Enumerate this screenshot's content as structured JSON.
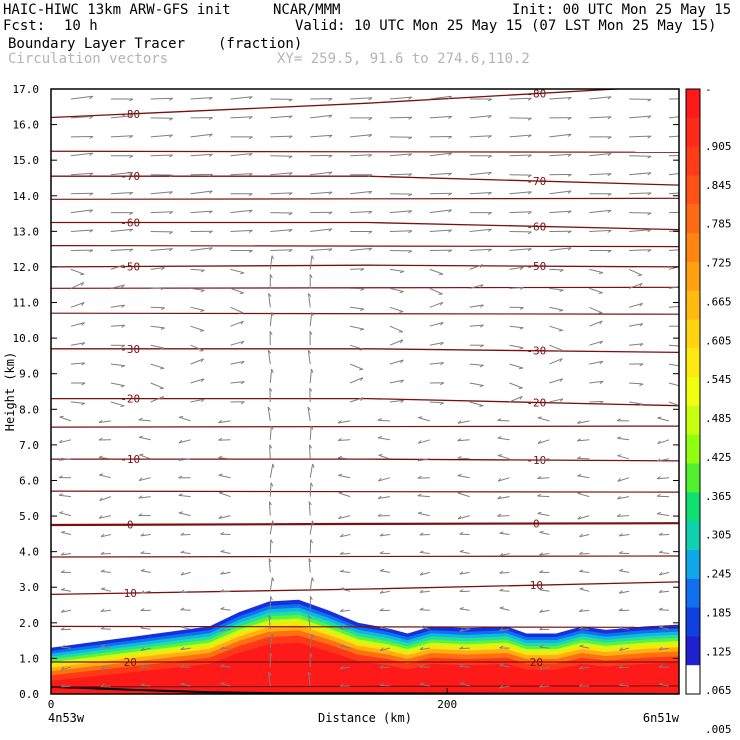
{
  "header": {
    "model": "HAIC-HIWC 13km ARW-GFS init",
    "org": "NCAR/MMM",
    "init": "Init: 00 UTC Mon 25 May 15",
    "fcst_label": "Fcst:",
    "fcst_value": "10 h",
    "valid": "Valid: 10 UTC Mon 25 May 15 (07 LST Mon 25 May 15)",
    "field": "Boundary Layer Tracer",
    "units": "(fraction)",
    "vectors": "Circulation vectors",
    "xy": "XY= 259.5, 91.6 to 274.6,110.2"
  },
  "chart_data": {
    "type": "heatmap",
    "title": "Boundary Layer Tracer",
    "xlabel": "Distance (km)",
    "ylabel": "Height (km)",
    "xlim": [
      0,
      317
    ],
    "ylim": [
      0,
      17
    ],
    "x_ticks": [
      {
        "v": 0,
        "label": "0"
      },
      {
        "v": 200,
        "label": "200"
      }
    ],
    "x_end_labels": [
      "4n53w",
      "6n51w"
    ],
    "y_ticks": [
      "0.0",
      "1.0",
      "2.0",
      "3.0",
      "4.0",
      "5.0",
      "6.0",
      "7.0",
      "8.0",
      "9.0",
      "10.0",
      "11.0",
      "12.0",
      "13.0",
      "14.0",
      "15.0",
      "16.0",
      "17.0"
    ],
    "colorbar_labels": [
      "-",
      ".905",
      ".845",
      ".785",
      ".725",
      ".665",
      ".605",
      ".545",
      ".485",
      ".425",
      ".365",
      ".305",
      ".245",
      ".185",
      ".125",
      ".065",
      ".005"
    ],
    "colorbar_colors": [
      "#ff1a1a",
      "#ff2a1a",
      "#ff3c18",
      "#ff5216",
      "#ff6a14",
      "#ff8412",
      "#ffa010",
      "#ffbb10",
      "#ffd410",
      "#ffea10",
      "#f0ff10",
      "#c8ff10",
      "#90ff10",
      "#50f030",
      "#10e070",
      "#10d0b0",
      "#10a8e8",
      "#1070f0",
      "#1040e0",
      "#2020d0",
      "#ffffff"
    ],
    "tracer_top_km": [
      [
        0,
        1.3
      ],
      [
        20,
        1.45
      ],
      [
        40,
        1.6
      ],
      [
        60,
        1.75
      ],
      [
        80,
        1.9
      ],
      [
        95,
        2.3
      ],
      [
        110,
        2.6
      ],
      [
        125,
        2.65
      ],
      [
        140,
        2.35
      ],
      [
        155,
        2.0
      ],
      [
        170,
        1.85
      ],
      [
        180,
        1.7
      ],
      [
        192,
        1.9
      ],
      [
        210,
        1.85
      ],
      [
        230,
        1.9
      ],
      [
        240,
        1.7
      ],
      [
        255,
        1.7
      ],
      [
        268,
        1.9
      ],
      [
        280,
        1.8
      ],
      [
        300,
        1.9
      ],
      [
        317,
        1.95
      ]
    ],
    "temp_contours_C": [
      {
        "v": 20,
        "z": [
          0.9,
          0.9,
          0.9
        ],
        "label": "20",
        "show_label": true
      },
      {
        "v": 10,
        "z": [
          2.8,
          2.95,
          3.15
        ],
        "label": "10",
        "show_label": true
      },
      {
        "v": 0,
        "z": [
          4.75,
          4.78,
          4.8
        ],
        "label": "0",
        "show_label": true
      },
      {
        "v": -10,
        "z": [
          6.6,
          6.6,
          6.55
        ],
        "label": "-10",
        "show_label": true
      },
      {
        "v": -20,
        "z": [
          8.3,
          8.3,
          8.1
        ],
        "label": "-20",
        "show_label": true
      },
      {
        "v": -30,
        "z": [
          9.7,
          9.7,
          9.6
        ],
        "label": "-30",
        "show_label": true
      },
      {
        "v": -50,
        "z": [
          12.0,
          12.05,
          12.0
        ],
        "label": "-50",
        "show_label": true
      },
      {
        "v": -60,
        "z": [
          13.25,
          13.25,
          13.05
        ],
        "label": "-60",
        "show_label": true
      },
      {
        "v": -70,
        "z": [
          14.55,
          14.55,
          14.3
        ],
        "label": "-70",
        "show_label": true
      },
      {
        "v": -80,
        "z": [
          16.2,
          16.6,
          17.1
        ],
        "label": "-80",
        "show_label": true
      }
    ],
    "extra_contour_heights_km": [
      0.2,
      1.9,
      3.85,
      5.7,
      7.5,
      10.7,
      11.4,
      12.6,
      13.9,
      15.25
    ]
  }
}
